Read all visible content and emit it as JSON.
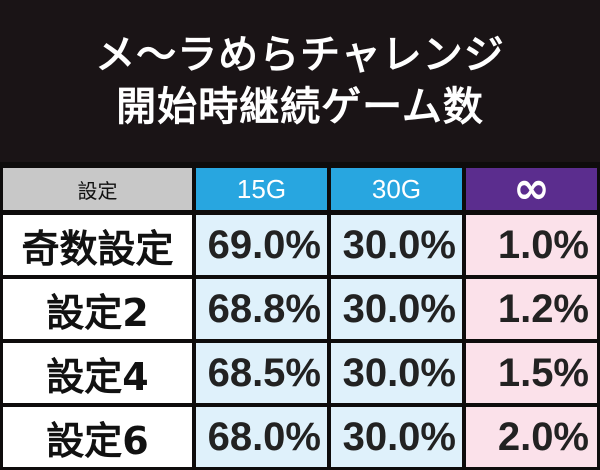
{
  "title": {
    "line1": "メ～ラめらチャレンジ",
    "line2": "開始時継続ゲーム数"
  },
  "table": {
    "headers": [
      "設定",
      "15G",
      "30G",
      "∞"
    ],
    "rows": [
      {
        "label": "奇数設定",
        "values": [
          "69.0%",
          "30.0%",
          "1.0%"
        ]
      },
      {
        "label": "設定2",
        "values": [
          "68.8%",
          "30.0%",
          "1.2%"
        ]
      },
      {
        "label": "設定4",
        "values": [
          "68.5%",
          "30.0%",
          "1.5%"
        ]
      },
      {
        "label": "設定6",
        "values": [
          "68.0%",
          "30.0%",
          "2.0%"
        ]
      }
    ]
  },
  "colors": {
    "background": "#1a1416",
    "header_gray": "#c8c8c8",
    "header_blue": "#28a6e0",
    "header_purple": "#5b2d8e",
    "cell_blue": "#dff1fb",
    "cell_pink": "#fbe1ea"
  }
}
